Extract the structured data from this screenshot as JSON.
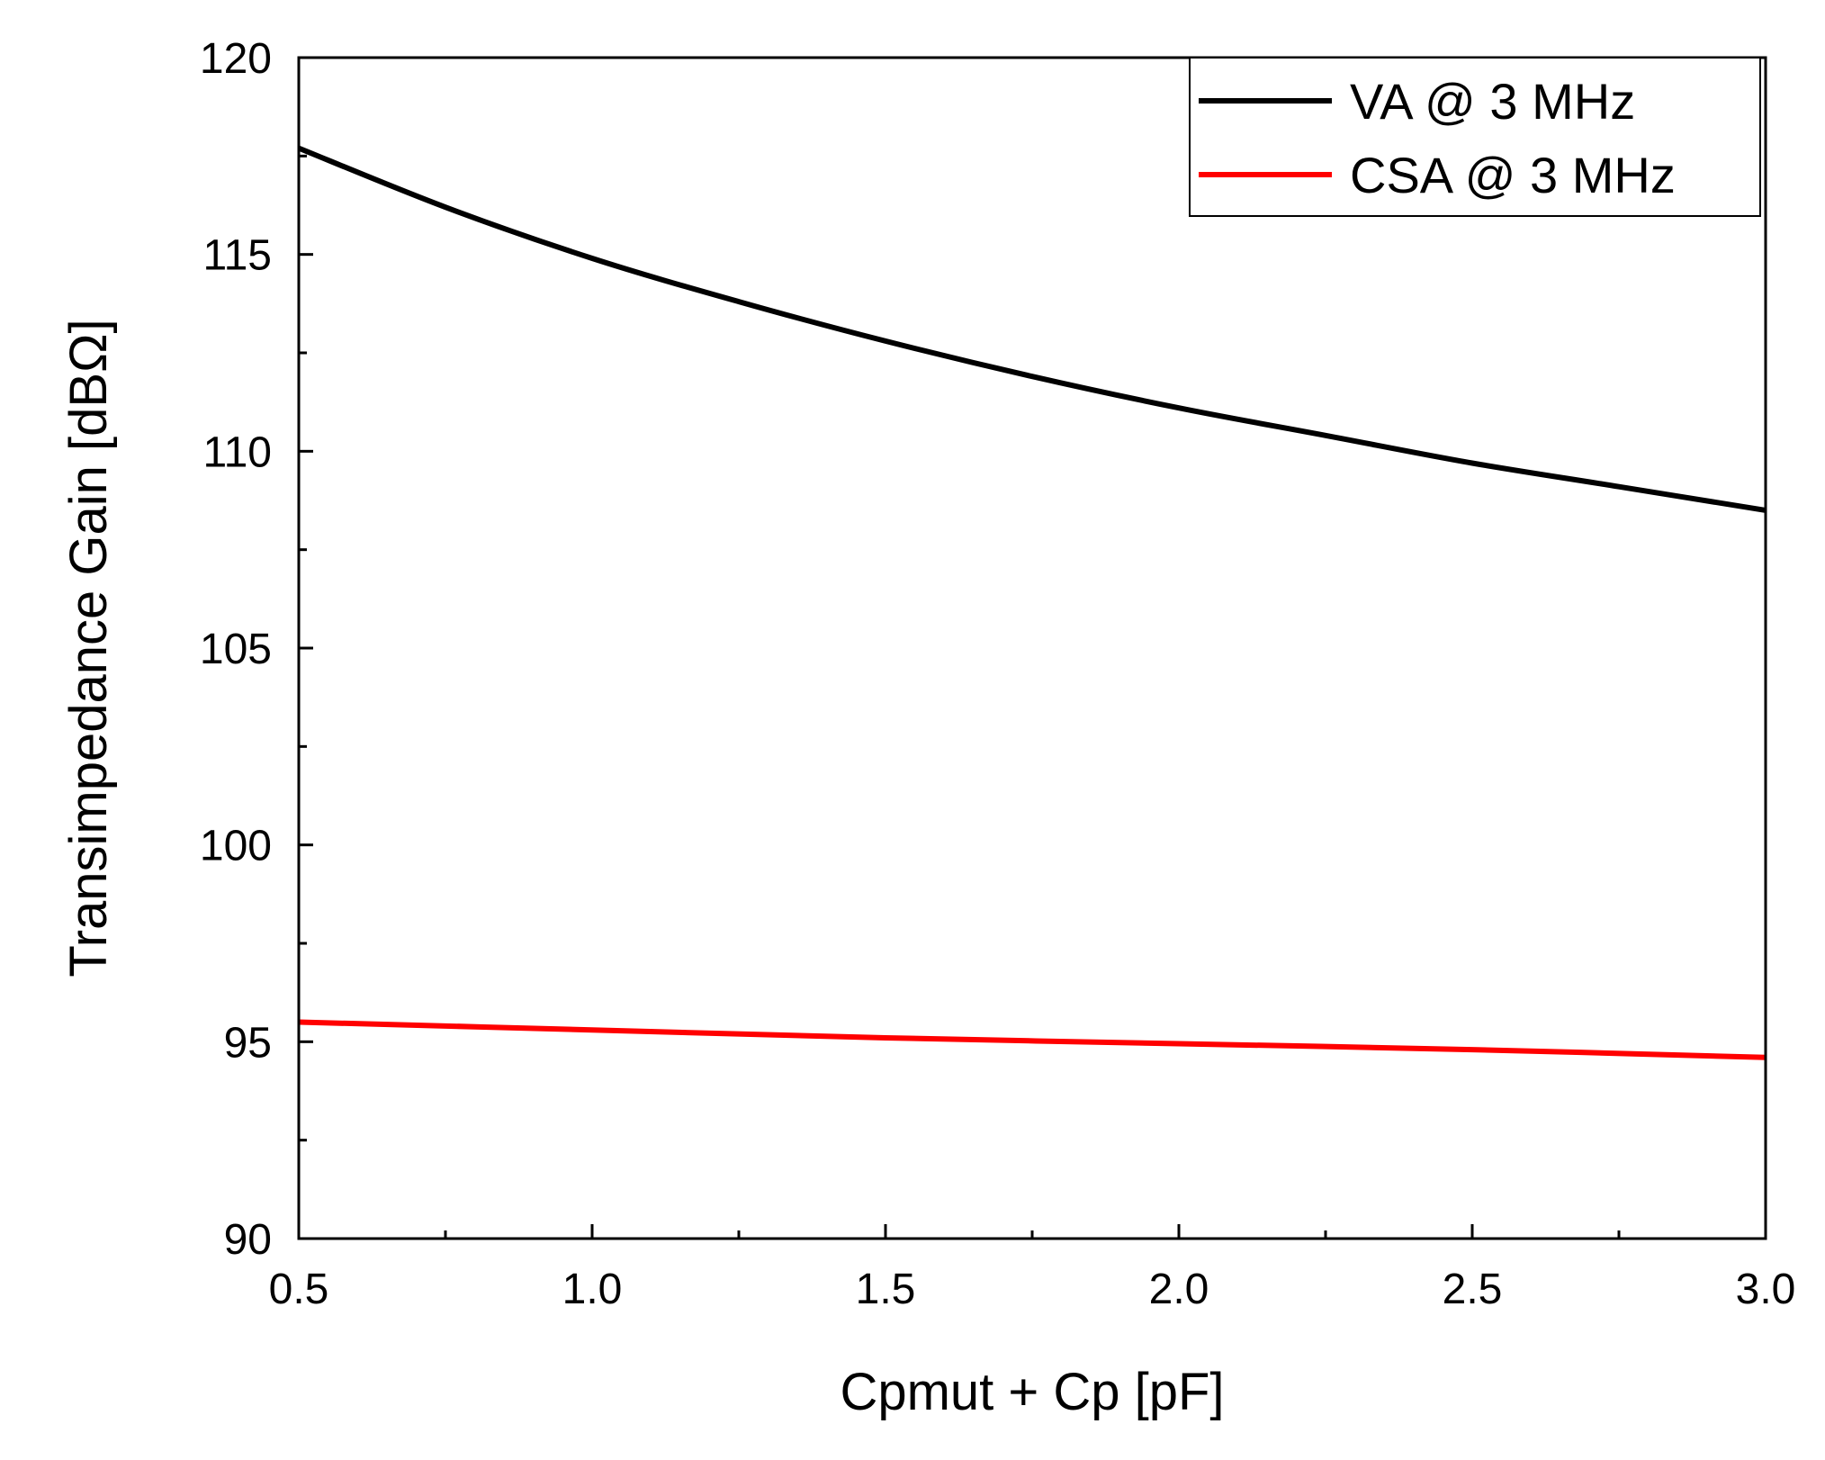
{
  "chart_data": {
    "type": "line",
    "title": "",
    "xlabel": "Cpmut + Cp [pF]",
    "ylabel": "Transimpedance Gain [dBΩ]",
    "xlim": [
      0.5,
      3.0
    ],
    "ylim": [
      90,
      120
    ],
    "xticks": [
      0.5,
      1.0,
      1.5,
      2.0,
      2.5,
      3.0
    ],
    "xtick_labels": [
      "0.5",
      "1.0",
      "1.5",
      "2.0",
      "2.5",
      "3.0"
    ],
    "yticks": [
      90,
      95,
      100,
      105,
      110,
      115,
      120
    ],
    "ytick_labels": [
      "90",
      "95",
      "100",
      "105",
      "110",
      "115",
      "120"
    ],
    "grid": false,
    "legend_position": "top-right",
    "series": [
      {
        "name": "VA @ 3 MHz",
        "color": "#000000",
        "x": [
          0.5,
          0.75,
          1.0,
          1.25,
          1.5,
          1.75,
          2.0,
          2.25,
          2.5,
          2.75,
          3.0
        ],
        "y": [
          117.7,
          116.2,
          114.9,
          113.8,
          112.8,
          111.9,
          111.1,
          110.4,
          109.7,
          109.1,
          108.5
        ]
      },
      {
        "name": "CSA @ 3 MHz",
        "color": "#ff0000",
        "x": [
          0.5,
          1.0,
          1.5,
          2.0,
          2.5,
          3.0
        ],
        "y": [
          95.5,
          95.3,
          95.1,
          94.95,
          94.8,
          94.6
        ]
      }
    ]
  }
}
